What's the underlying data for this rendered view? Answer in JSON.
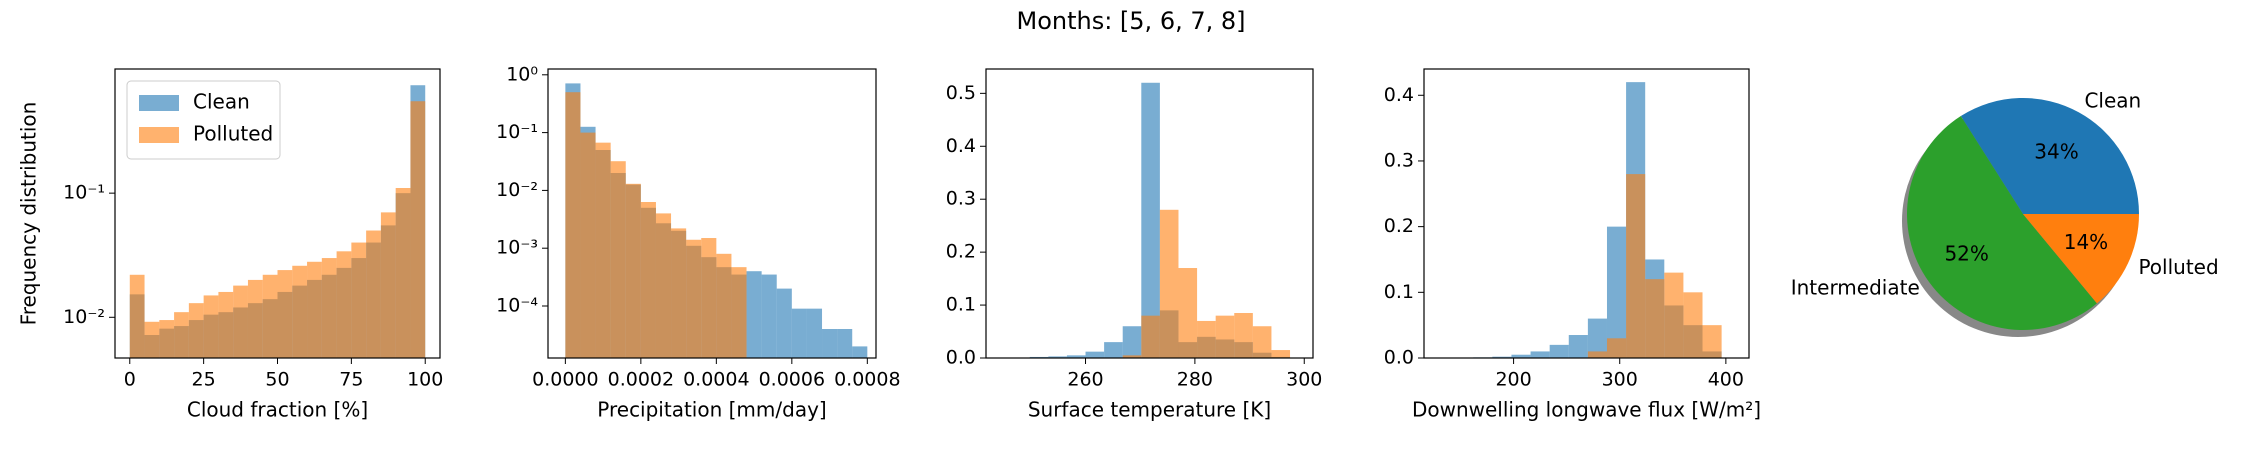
{
  "title": "Months: [5, 6, 7, 8]",
  "chart_data": [
    {
      "type": "histogram",
      "xlabel": "Cloud fraction [%]",
      "ylabel": "Frequency distribution",
      "log_y": true,
      "legend": "upper left",
      "bins": [
        0,
        5,
        10,
        15,
        20,
        25,
        30,
        35,
        40,
        45,
        50,
        55,
        60,
        65,
        70,
        75,
        80,
        85,
        90,
        95,
        100
      ],
      "series": [
        {
          "name": "Clean",
          "color": "#1f77b4",
          "values": [
            0.0153,
            0.0072,
            0.0081,
            0.0085,
            0.0095,
            0.0105,
            0.011,
            0.012,
            0.013,
            0.014,
            0.016,
            0.018,
            0.02,
            0.022,
            0.025,
            0.03,
            0.04,
            0.055,
            0.1,
            0.74
          ]
        },
        {
          "name": "Polluted",
          "color": "#ff7f0e",
          "values": [
            0.022,
            0.0092,
            0.0095,
            0.011,
            0.013,
            0.015,
            0.016,
            0.018,
            0.02,
            0.022,
            0.024,
            0.026,
            0.028,
            0.03,
            0.034,
            0.04,
            0.05,
            0.07,
            0.11,
            0.55
          ]
        }
      ],
      "xlim": [
        -5,
        105
      ],
      "ylim": [
        0.0047,
        1
      ],
      "xticks": [
        0,
        25,
        50,
        75,
        100
      ],
      "yticks": [
        {
          "value": 0.01,
          "label": "10⁻²"
        },
        {
          "value": 0.1,
          "label": "10⁻¹"
        }
      ]
    },
    {
      "type": "histogram",
      "xlabel": "Precipitation [mm/day]",
      "log_y": true,
      "bins": [
        0,
        4e-05,
        8e-05,
        0.00012,
        0.00016,
        0.0002,
        0.00024,
        0.00028,
        0.00032,
        0.00036,
        0.0004,
        0.00044,
        0.00048,
        0.00052,
        0.00056,
        0.0006,
        0.00064,
        0.00068,
        0.00072,
        0.00076,
        0.0008
      ],
      "series": [
        {
          "color": "#1f77b4",
          "values": [
            0.71,
            0.126,
            0.05,
            0.02,
            0.0126,
            0.005,
            0.0027,
            0.002,
            0.0011,
            0.0007,
            0.00047,
            0.00035,
            0.0004,
            0.00035,
            0.0002,
            9e-05,
            9e-05,
            4e-05,
            4e-05,
            2e-05
          ]
        },
        {
          "color": "#ff7f0e",
          "values": [
            0.5,
            0.1,
            0.067,
            0.032,
            0.013,
            0.0063,
            0.004,
            0.0022,
            0.0014,
            0.0015,
            0.0008,
            0.00047,
            null,
            null,
            null,
            null,
            null,
            null,
            null,
            null
          ]
        }
      ],
      "xlim": [
        -4.6e-05,
        0.000823
      ],
      "ylim": [
        1.26e-05,
        1.26
      ],
      "xticks": [
        {
          "value": 0,
          "label": "0.0000"
        },
        {
          "value": 0.0002,
          "label": "0.0002"
        },
        {
          "value": 0.0004,
          "label": "0.0004"
        },
        {
          "value": 0.0006,
          "label": "0.0006"
        },
        {
          "value": 0.0008,
          "label": "0.0008"
        }
      ],
      "yticks": [
        {
          "value": 0.0001,
          "label": "10⁻⁴"
        },
        {
          "value": 0.001,
          "label": "10⁻³"
        },
        {
          "value": 0.01,
          "label": "10⁻²"
        },
        {
          "value": 0.1,
          "label": "10⁻¹"
        },
        {
          "value": 1,
          "label": "10⁰"
        }
      ]
    },
    {
      "type": "histogram",
      "xlabel": "Surface temperature [K]",
      "log_y": false,
      "bins": [
        243,
        246.4,
        249.8,
        253.2,
        256.6,
        260,
        263.4,
        266.8,
        270.2,
        273.6,
        277,
        280.4,
        283.8,
        287.2,
        290.6,
        294,
        297.4
      ],
      "series": [
        {
          "color": "#1f77b4",
          "values": [
            null,
            null,
            0.002,
            0.003,
            0.005,
            0.012,
            0.03,
            0.06,
            0.52,
            0.09,
            0.03,
            0.04,
            0.035,
            0.03,
            0.01,
            0.002
          ]
        },
        {
          "color": "#ff7f0e",
          "values": [
            null,
            null,
            null,
            null,
            null,
            null,
            null,
            0.005,
            0.08,
            0.28,
            0.17,
            0.07,
            0.08,
            0.085,
            0.06,
            0.015
          ]
        }
      ],
      "xlim": [
        241.8,
        301.6
      ],
      "ylim": [
        0,
        0.546
      ],
      "xticks": [
        260,
        280,
        300
      ],
      "yticks": [
        {
          "value": 0,
          "label": "0.0"
        },
        0.1,
        0.2,
        0.3,
        0.4,
        0.5
      ]
    },
    {
      "type": "histogram",
      "xlabel": "Downwelling longwave flux [W/m²]",
      "log_y": false,
      "bins": [
        126,
        144,
        162,
        180,
        198,
        216,
        234,
        252,
        270,
        288,
        306,
        324,
        342,
        360,
        378,
        396
      ],
      "series": [
        {
          "color": "#1f77b4",
          "values": [
            null,
            null,
            0.001,
            0.002,
            0.005,
            0.01,
            0.02,
            0.035,
            0.06,
            0.2,
            0.42,
            0.15,
            0.08,
            0.05,
            0.01
          ]
        },
        {
          "color": "#ff7f0e",
          "values": [
            null,
            null,
            null,
            null,
            null,
            null,
            null,
            null,
            0.01,
            0.03,
            0.28,
            0.12,
            0.13,
            0.1,
            0.05
          ]
        }
      ],
      "xlim": [
        115.6,
        421.8
      ],
      "ylim": [
        0,
        0.44
      ],
      "xticks": [
        200,
        300,
        400
      ],
      "yticks": [
        {
          "value": 0,
          "label": "0.0"
        },
        0.1,
        0.2,
        0.3,
        0.4
      ]
    },
    {
      "type": "pie",
      "labels": [
        "Clean",
        "Intermediate",
        "Polluted"
      ],
      "values": [
        34,
        52,
        14
      ],
      "value_labels": [
        "34%",
        "52%",
        "14%"
      ],
      "colors": [
        "#1f77b4",
        "#2ca02c",
        "#ff7f0e"
      ],
      "shadow": true
    }
  ]
}
